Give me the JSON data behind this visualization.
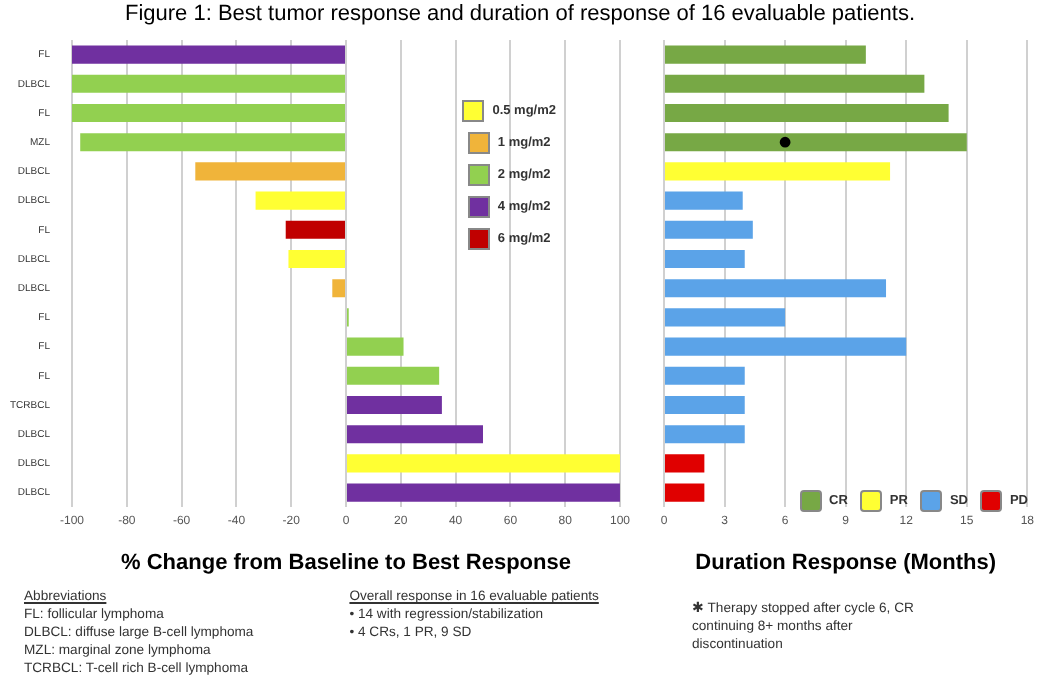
{
  "chart_data": [
    {
      "type": "bar",
      "orientation": "horizontal",
      "title": "Figure 1: Best tumor response and duration of response of 16 evaluable patients.",
      "xlabel": "% Change from Baseline to Best Response",
      "categories": [
        "FL",
        "DLBCL",
        "FL",
        "MZL",
        "DLBCL",
        "DLBCL",
        "FL",
        "DLBCL",
        "DLBCL",
        "FL",
        "FL",
        "FL",
        "TCRBCL",
        "DLBCL",
        "DLBCL",
        "DLBCL"
      ],
      "series": [
        {
          "name": "0.5 mg/m2",
          "color": "#ffff33",
          "values": [
            null,
            null,
            null,
            null,
            null,
            -33,
            null,
            -21,
            null,
            null,
            null,
            null,
            null,
            null,
            100,
            null
          ]
        },
        {
          "name": "1 mg/m2",
          "color": "#f0b43a",
          "values": [
            null,
            null,
            null,
            null,
            -55,
            null,
            null,
            null,
            -5,
            null,
            null,
            null,
            null,
            null,
            null,
            null
          ]
        },
        {
          "name": "2 mg/m2",
          "color": "#92d050",
          "values": [
            null,
            -100,
            -100,
            -97,
            null,
            null,
            null,
            null,
            null,
            1,
            21,
            34,
            null,
            null,
            null,
            null
          ]
        },
        {
          "name": "4 mg/m2",
          "color": "#7030a0",
          "values": [
            -100,
            null,
            null,
            null,
            null,
            null,
            null,
            null,
            null,
            null,
            null,
            null,
            35,
            50,
            null,
            100
          ]
        },
        {
          "name": "6 mg/m2",
          "color": "#c00000",
          "values": [
            null,
            null,
            null,
            null,
            null,
            null,
            -22,
            null,
            null,
            null,
            null,
            null,
            null,
            null,
            null,
            null
          ]
        }
      ],
      "xlim": [
        -100,
        100
      ],
      "xticks": [
        -100,
        -80,
        -60,
        -40,
        -20,
        0,
        20,
        40,
        60,
        80,
        100
      ],
      "grid": "x",
      "legend": "top right",
      "annotations": [
        "Abbreviations\nFL: follicular lymphoma\nDLBCL: diffuse large B-cell lymphoma\nMZL: marginal zone lymphoma\nTCRBCL: T-cell rich B-cell lymphoma",
        "Overall response in 16 evaluable patients\n•  14 with regression/stabilization\n•  4 CRs, 1 PR, 9 SD"
      ]
    },
    {
      "type": "bar",
      "orientation": "horizontal",
      "xlabel": "Duration Response (Months)",
      "categories": [
        null,
        null,
        null,
        null,
        null,
        null,
        null,
        null,
        null,
        null,
        null,
        null,
        null,
        null,
        null,
        null
      ],
      "series": [
        {
          "name": "CR",
          "color": "#77a845",
          "values": [
            10,
            12.9,
            14.1,
            15,
            null,
            null,
            null,
            null,
            null,
            null,
            null,
            null,
            null,
            null,
            null,
            null
          ]
        },
        {
          "name": "PR",
          "color": "#ffff33",
          "values": [
            null,
            null,
            null,
            null,
            11.2,
            null,
            null,
            null,
            null,
            null,
            null,
            null,
            null,
            null,
            null,
            null
          ]
        },
        {
          "name": "SD",
          "color": "#5ba3e8",
          "values": [
            null,
            null,
            null,
            null,
            null,
            3.9,
            4.4,
            4,
            11,
            6,
            12,
            4,
            4,
            4,
            null,
            null
          ]
        },
        {
          "name": "PD",
          "color": "#e00000",
          "values": [
            null,
            null,
            null,
            null,
            null,
            null,
            null,
            null,
            null,
            null,
            null,
            null,
            null,
            null,
            2,
            2
          ]
        },
        {
          "type": "scatter",
          "color": "#000000",
          "marker": "circle",
          "values": [
            null,
            null,
            null,
            6,
            null,
            null,
            null,
            null,
            null,
            null,
            null,
            null,
            null,
            null,
            null,
            null
          ]
        }
      ],
      "xlim": [
        0,
        18
      ],
      "xticks": [
        0,
        3,
        6,
        9,
        12,
        15,
        18
      ],
      "grid": "x",
      "legend": "bottom right",
      "annotations": [
        "✱  Therapy stopped after cycle 6, CR continuing 8+ months after discontinuation"
      ]
    }
  ]
}
